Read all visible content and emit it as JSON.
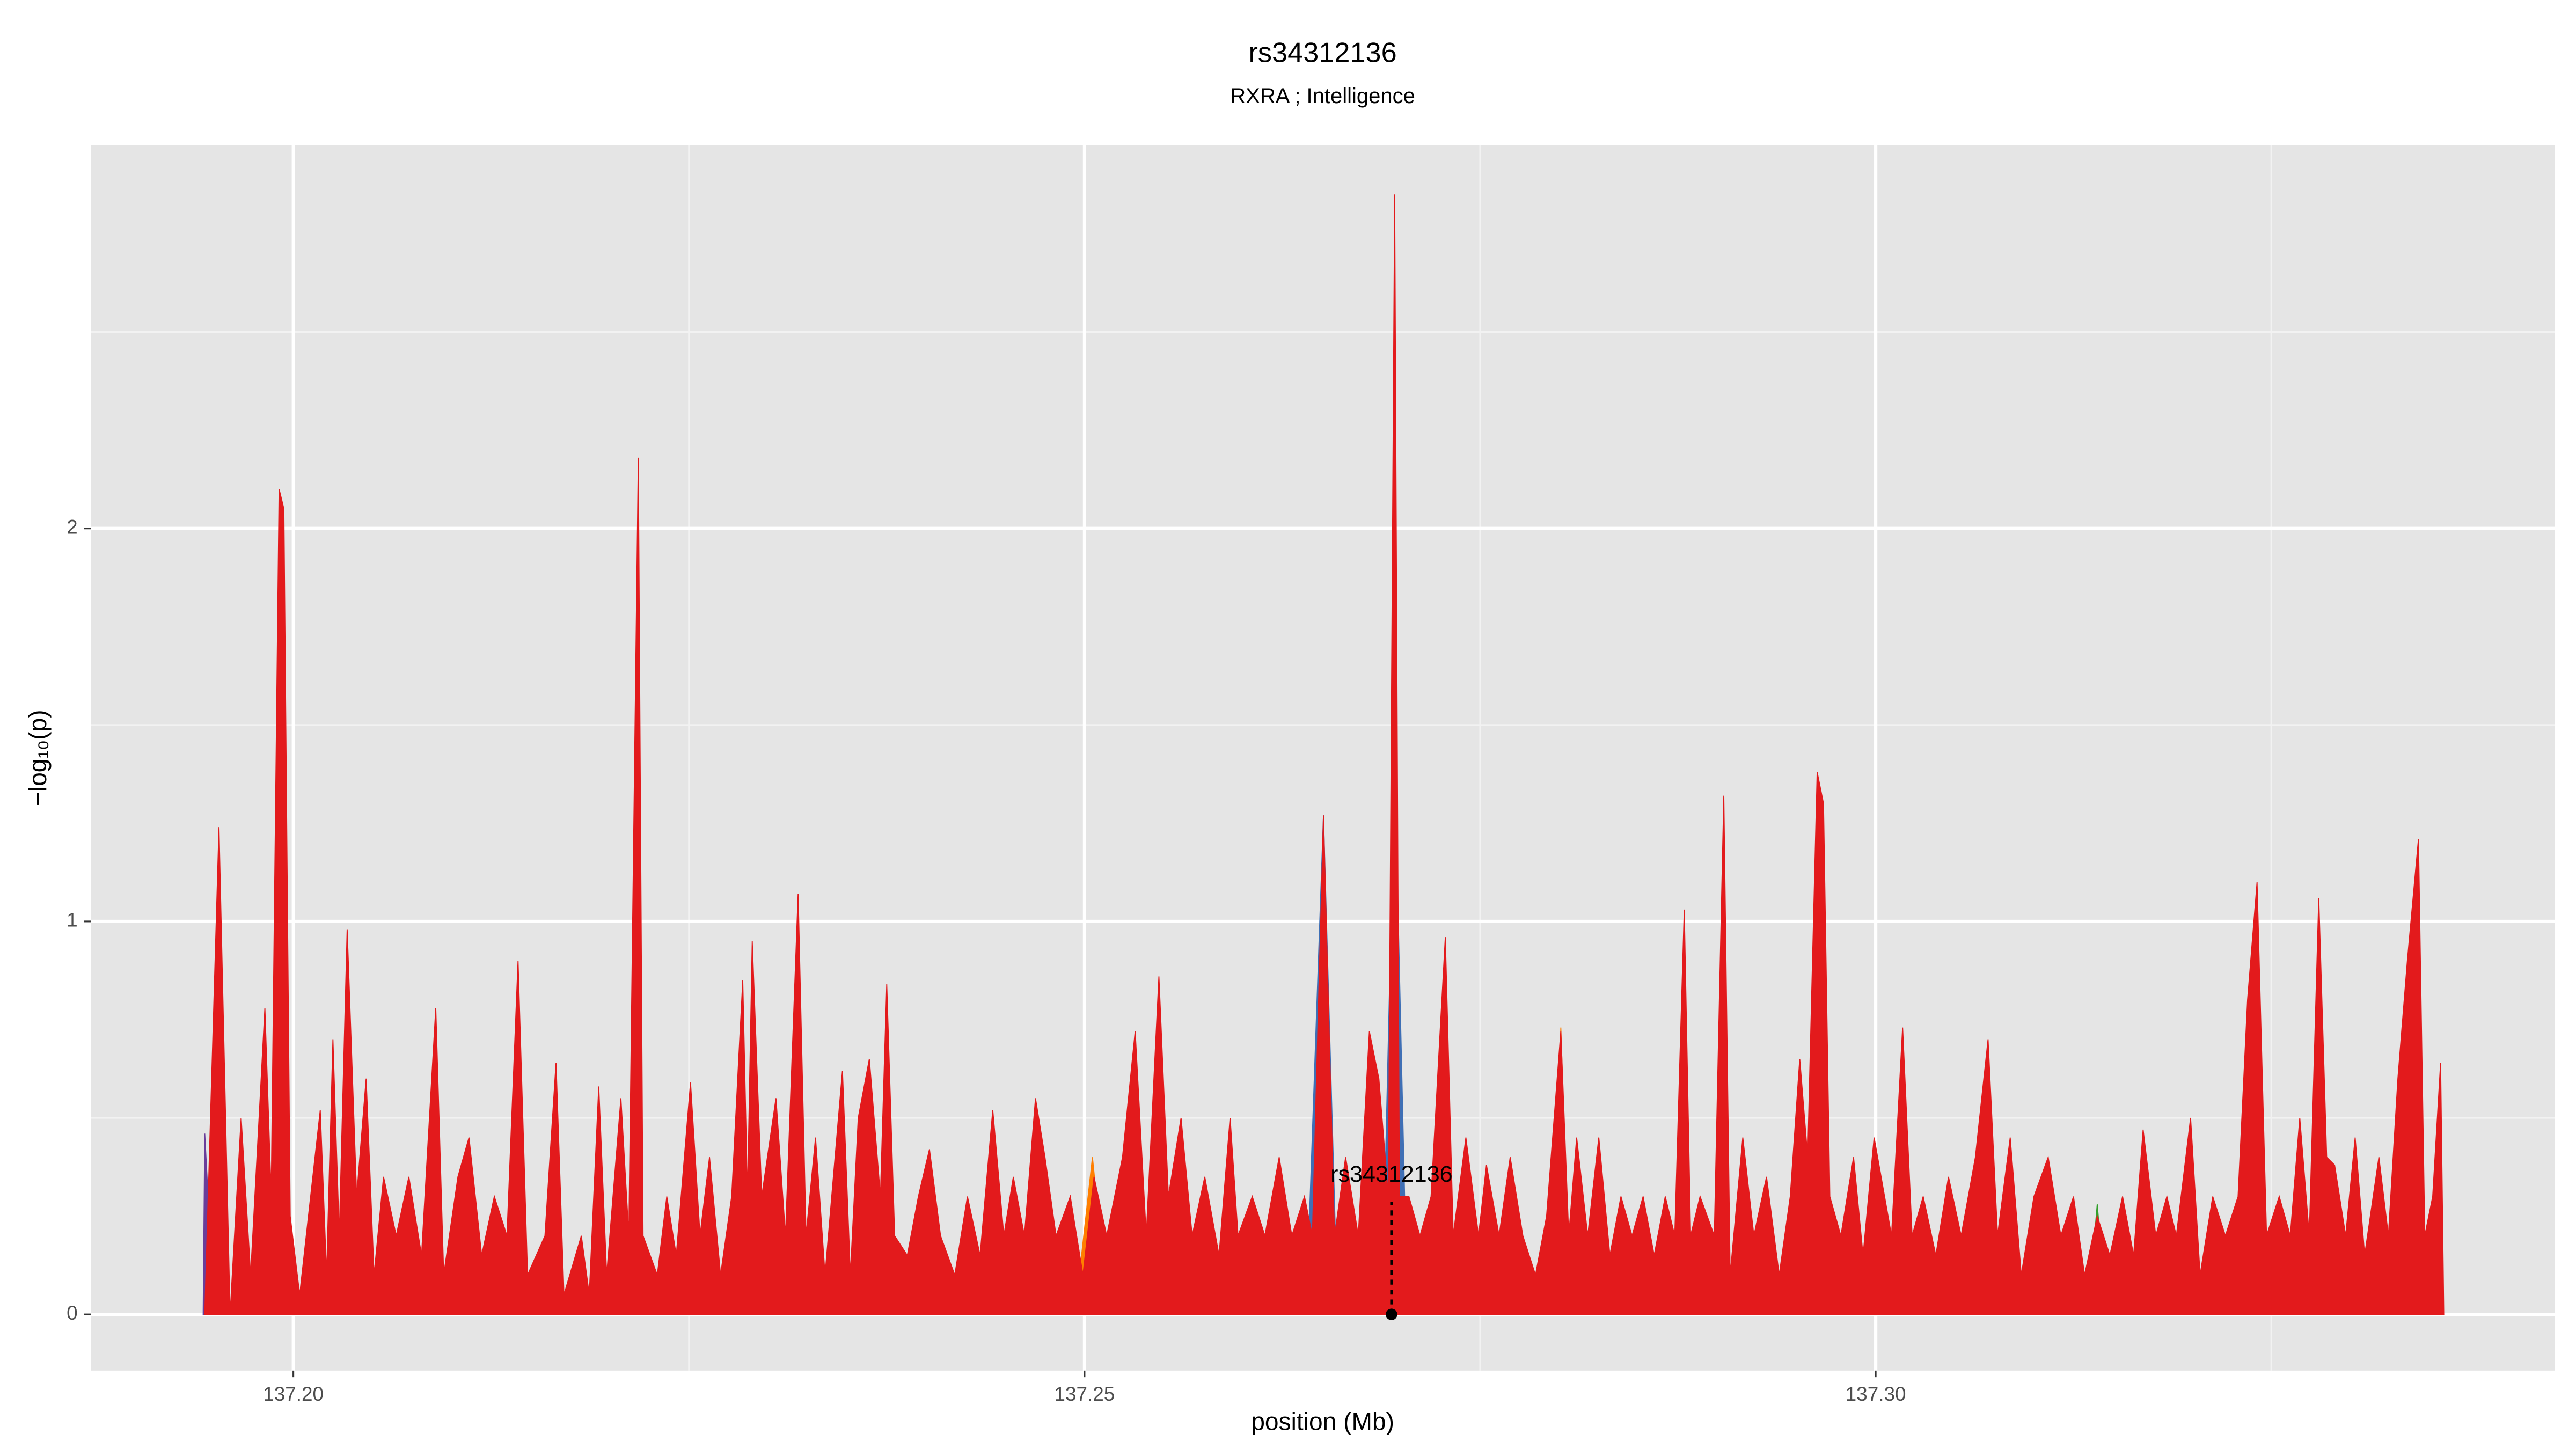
{
  "chart_data": {
    "type": "area",
    "title": "rs34312136",
    "subtitle": "RXRA ; Intelligence",
    "x_label": "position (Mb)",
    "y_label": "−log₁₀(p)",
    "xlim": [
      137.1872,
      137.3429
    ],
    "ylim": [
      -0.143,
      2.975
    ],
    "xticks": [
      {
        "value": 137.2,
        "label": "137.20"
      },
      137.25,
      {
        "value": 137.3,
        "label": "137.30"
      }
    ],
    "yticks": [
      0,
      1,
      2
    ],
    "x_minor_grid": [
      137.225,
      137.275,
      137.325
    ],
    "y_minor_grid": [
      0.5,
      1.5,
      2.5
    ],
    "grid": true,
    "background": "#e5e5e5",
    "series": [
      {
        "color": "#6a3d9a",
        "x": [
          137.1943,
          137.1944,
          137.195
        ],
        "values": [
          0,
          0.46,
          0
        ]
      },
      {
        "color": "#3f6fb5",
        "x": [
          137.264,
          137.2651,
          137.266,
          null,
          137.2688,
          137.2696,
          137.2704
        ],
        "values": [
          0,
          1.27,
          0,
          null,
          0,
          1.4,
          0
        ]
      },
      {
        "color": "#ff7f00",
        "x": [
          137.2494,
          137.2505,
          137.2515,
          null,
          137.2795,
          137.2801,
          137.2807
        ],
        "values": [
          0,
          0.4,
          0,
          null,
          0,
          0.73,
          0
        ]
      },
      {
        "color": "#33a02c",
        "x": [
          137.3134,
          137.314,
          137.3146
        ],
        "values": [
          0,
          0.28,
          0
        ]
      },
      {
        "color": "#e31a1c",
        "x": [
          137.1944,
          137.1953,
          137.196,
          137.1967,
          137.1973,
          137.1979,
          137.1982,
          137.1986,
          137.1991,
          137.1994,
          137.1998,
          137.2004,
          137.2017,
          137.2021,
          137.2025,
          137.2029,
          137.2034,
          137.204,
          137.2046,
          137.2051,
          137.2057,
          137.2065,
          137.2073,
          137.2081,
          137.209,
          137.2095,
          137.2104,
          137.2111,
          137.2119,
          137.2127,
          137.2135,
          137.2142,
          137.2148,
          137.2159,
          137.2166,
          137.2171,
          137.2182,
          137.2187,
          137.2193,
          137.2198,
          137.2207,
          137.2212,
          137.2218,
          137.2221,
          137.223,
          137.2236,
          137.2242,
          137.2251,
          137.2257,
          137.2263,
          137.227,
          137.2277,
          137.2284,
          137.2287,
          137.229,
          137.2296,
          137.2305,
          137.2311,
          137.2319,
          137.2324,
          137.233,
          137.2336,
          137.2347,
          137.2352,
          137.2357,
          137.2364,
          137.2371,
          137.2375,
          137.238,
          137.2388,
          137.2395,
          137.2402,
          137.2409,
          137.2418,
          137.2426,
          137.2434,
          137.2442,
          137.2449,
          137.2455,
          137.2462,
          137.2469,
          137.2475,
          137.2482,
          137.2491,
          137.2499,
          137.2506,
          137.2514,
          137.2524,
          137.2532,
          137.2539,
          137.2547,
          137.2553,
          137.2561,
          137.2568,
          137.2576,
          137.2585,
          137.2592,
          137.2597,
          137.2606,
          137.2614,
          137.2623,
          137.2631,
          137.2639,
          137.2644,
          137.2651,
          137.2658,
          137.2665,
          137.2673,
          137.268,
          137.2686,
          137.2692,
          137.2696,
          137.2699,
          137.2705,
          137.2712,
          137.2719,
          137.2728,
          137.2733,
          137.2741,
          137.2749,
          137.2754,
          137.2762,
          137.2769,
          137.2777,
          137.2785,
          137.2792,
          137.2801,
          137.2806,
          137.2811,
          137.2818,
          137.2825,
          137.2832,
          137.2839,
          137.2846,
          137.2853,
          137.286,
          137.2867,
          137.2873,
          137.2879,
          137.2883,
          137.2889,
          137.2898,
          137.2904,
          137.2908,
          137.2916,
          137.2923,
          137.2931,
          137.2939,
          137.2946,
          137.2952,
          137.2957,
          137.2963,
          137.2967,
          137.2971,
          137.2978,
          137.2986,
          137.2992,
          137.2999,
          137.301,
          137.3017,
          137.3023,
          137.303,
          137.3038,
          137.3046,
          137.3054,
          137.3063,
          137.3071,
          137.3077,
          137.3085,
          137.3092,
          137.31,
          137.3109,
          137.3117,
          137.3125,
          137.3132,
          137.314,
          137.3148,
          137.3156,
          137.3163,
          137.3169,
          137.3177,
          137.3184,
          137.319,
          137.3199,
          137.3205,
          137.3213,
          137.3221,
          137.3229,
          137.3235,
          137.3241,
          137.3247,
          137.3255,
          137.3262,
          137.3268,
          137.3274,
          137.328,
          137.3285,
          137.329,
          137.3297,
          137.3303,
          137.3309,
          137.3318,
          137.3324,
          137.333,
          137.3336,
          137.3343,
          137.3347,
          137.3352,
          137.3357,
          137.3359
        ],
        "values": [
          0,
          1.24,
          0,
          0.5,
          0.1,
          0.55,
          0.78,
          0.3,
          2.1,
          2.05,
          0.25,
          0.05,
          0.52,
          0.1,
          0.7,
          0.2,
          0.98,
          0.3,
          0.6,
          0.1,
          0.35,
          0.2,
          0.35,
          0.15,
          0.78,
          0.1,
          0.35,
          0.45,
          0.15,
          0.3,
          0.2,
          0.9,
          0.1,
          0.2,
          0.64,
          0.05,
          0.2,
          0.05,
          0.58,
          0.1,
          0.55,
          0.2,
          2.18,
          0.2,
          0.1,
          0.3,
          0.15,
          0.59,
          0.2,
          0.4,
          0.1,
          0.3,
          0.85,
          0.3,
          0.95,
          0.3,
          0.55,
          0.2,
          1.07,
          0.2,
          0.45,
          0.1,
          0.62,
          0.1,
          0.5,
          0.65,
          0.3,
          0.84,
          0.2,
          0.15,
          0.3,
          0.42,
          0.2,
          0.1,
          0.3,
          0.15,
          0.52,
          0.2,
          0.35,
          0.2,
          0.55,
          0.4,
          0.2,
          0.3,
          0.1,
          0.35,
          0.2,
          0.4,
          0.72,
          0.2,
          0.86,
          0.3,
          0.5,
          0.2,
          0.35,
          0.15,
          0.5,
          0.2,
          0.3,
          0.2,
          0.4,
          0.2,
          0.3,
          0.2,
          1.27,
          0.2,
          0.4,
          0.2,
          0.72,
          0.6,
          0.3,
          2.85,
          0.3,
          0.3,
          0.2,
          0.3,
          0.96,
          0.2,
          0.45,
          0.2,
          0.38,
          0.2,
          0.4,
          0.2,
          0.1,
          0.25,
          0.72,
          0.2,
          0.45,
          0.2,
          0.45,
          0.15,
          0.3,
          0.2,
          0.3,
          0.15,
          0.3,
          0.2,
          1.03,
          0.2,
          0.3,
          0.2,
          1.32,
          0.1,
          0.45,
          0.2,
          0.35,
          0.1,
          0.3,
          0.65,
          0.4,
          1.38,
          1.3,
          0.3,
          0.2,
          0.4,
          0.15,
          0.45,
          0.2,
          0.73,
          0.2,
          0.3,
          0.15,
          0.35,
          0.2,
          0.4,
          0.7,
          0.2,
          0.45,
          0.1,
          0.3,
          0.4,
          0.2,
          0.3,
          0.1,
          0.25,
          0.15,
          0.3,
          0.15,
          0.47,
          0.2,
          0.3,
          0.2,
          0.5,
          0.1,
          0.3,
          0.2,
          0.3,
          0.8,
          1.1,
          0.2,
          0.3,
          0.2,
          0.5,
          0.2,
          1.06,
          0.4,
          0.38,
          0.2,
          0.45,
          0.15,
          0.4,
          0.2,
          0.6,
          0.9,
          1.21,
          0.2,
          0.3,
          0.64,
          0
        ]
      }
    ],
    "annotation": {
      "text": "rs34312136",
      "x": 137.2694,
      "y": 0
    }
  }
}
